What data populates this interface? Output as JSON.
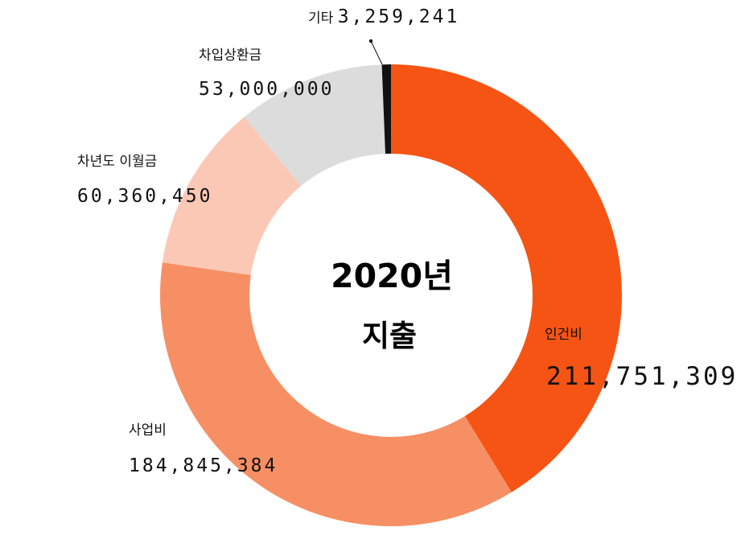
{
  "chart_data": {
    "type": "pie",
    "title": "2020년",
    "subtitle": "지출",
    "slices": [
      {
        "label": "인건비",
        "value": 211751309,
        "value_text": "211,751,309",
        "color": "#f55414"
      },
      {
        "label": "사업비",
        "value": 184845384,
        "value_text": "184,845,384",
        "color": "#f78f64"
      },
      {
        "label": "차년도 이월금",
        "value": 60360450,
        "value_text": "60,360,450",
        "color": "#fcc8b6"
      },
      {
        "label": "차입상환금",
        "value": 53000000,
        "value_text": "53,000,000",
        "color": "#dcdcdc"
      },
      {
        "label": "기타",
        "value": 3259241,
        "value_text": "3,259,241",
        "color": "#111111"
      }
    ],
    "legend": "none"
  }
}
